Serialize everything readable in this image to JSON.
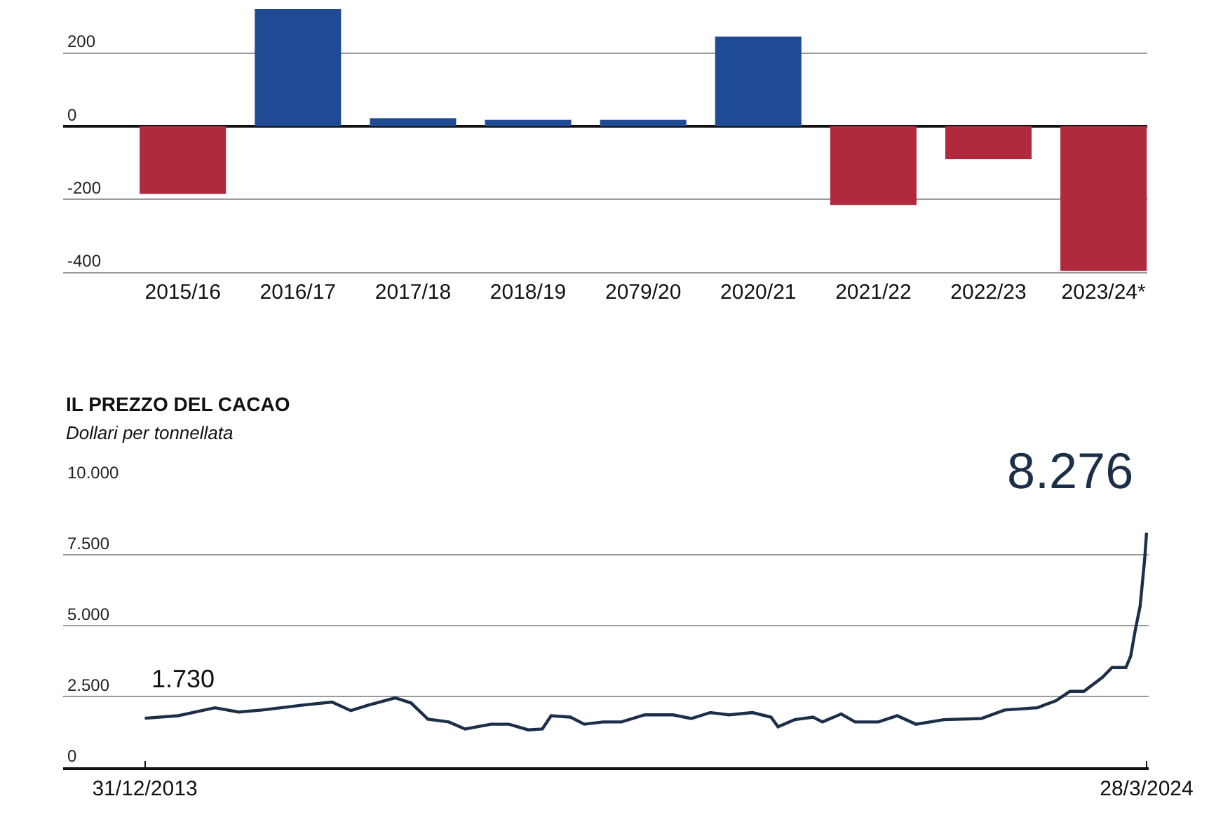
{
  "chart_data": [
    {
      "type": "bar",
      "categories": [
        "2015/16",
        "2016/17",
        "2017/18",
        "2018/19",
        "2079/20",
        "2020/21",
        "2021/22",
        "2022/23",
        "2023/24*"
      ],
      "values": [
        -185,
        320,
        22,
        18,
        18,
        245,
        -215,
        -90,
        -395
      ],
      "colors": [
        "#b02a3e",
        "#1f4b94",
        "#1f4b94",
        "#1f4b94",
        "#1f4b94",
        "#1f4b94",
        "#b02a3e",
        "#b02a3e",
        "#b02a3e"
      ],
      "ylim": [
        -410,
        345
      ],
      "yticks": [
        -400,
        -200,
        0,
        200
      ],
      "grid": "y"
    },
    {
      "type": "line",
      "title": "IL PREZZO DEL CACAO",
      "subtitle": "Dollari per tonnellata",
      "x": [
        "2013-12-31",
        "2014-05-04",
        "2014-09-19",
        "2014-12-16",
        "2015-03-14",
        "2015-08-18",
        "2015-11-30",
        "2016-02-08",
        "2016-04-16",
        "2016-07-23",
        "2016-09-20",
        "2016-11-22",
        "2017-02-08",
        "2017-04-10",
        "2017-07-15",
        "2017-09-21",
        "2017-12-02",
        "2018-01-23",
        "2018-02-25",
        "2018-05-08",
        "2018-06-29",
        "2018-09-07",
        "2018-11-14",
        "2019-02-10",
        "2019-05-26",
        "2019-08-02",
        "2019-10-13",
        "2019-12-21",
        "2020-03-18",
        "2020-05-26",
        "2020-06-21",
        "2020-08-22",
        "2020-10-30",
        "2020-12-04",
        "2021-02-12",
        "2021-04-05",
        "2021-07-01",
        "2021-09-09",
        "2021-11-18",
        "2022-03-02",
        "2022-07-20",
        "2022-10-15",
        "2023-02-14",
        "2023-04-25",
        "2023-06-16",
        "2023-08-07",
        "2023-10-16",
        "2023-11-20",
        "2024-01-11",
        "2024-01-29",
        "2024-02-15",
        "2024-03-04",
        "2024-03-21",
        "2024-03-28"
      ],
      "series": [
        {
          "color": "#1d2f48",
          "values": [
            1730,
            1820,
            2100,
            1950,
            2020,
            2200,
            2300,
            2000,
            2200,
            2450,
            2270,
            1700,
            1600,
            1350,
            1520,
            1520,
            1320,
            1350,
            1820,
            1770,
            1520,
            1600,
            1600,
            1850,
            1850,
            1720,
            1930,
            1850,
            1930,
            1770,
            1430,
            1680,
            1770,
            1600,
            1880,
            1600,
            1600,
            1820,
            1520,
            1680,
            1720,
            2020,
            2100,
            2350,
            2680,
            2680,
            3180,
            3520,
            3520,
            3930,
            4850,
            5680,
            7350,
            8276
          ]
        }
      ],
      "xlim": [
        "2013-03-01",
        "2024-04-05"
      ],
      "xticks": [
        {
          "value": "2013-12-31",
          "label": "31/12/2013"
        },
        {
          "value": "2024-03-28",
          "label": "28/3/2024"
        }
      ],
      "ylim": [
        0,
        10000
      ],
      "yticks": [
        0,
        {
          "value": 2500,
          "label": "2.500"
        },
        {
          "value": 5000,
          "label": "5.000"
        },
        {
          "value": 7500,
          "label": "7.500"
        },
        {
          "value": 10000,
          "label": "10.000"
        }
      ],
      "grid": "y",
      "annotations": [
        {
          "text": "1.730",
          "x": "2013-12-31",
          "y": 1730
        },
        {
          "text": "8.276",
          "x": "2024-03-28",
          "y": 8276
        }
      ]
    }
  ]
}
